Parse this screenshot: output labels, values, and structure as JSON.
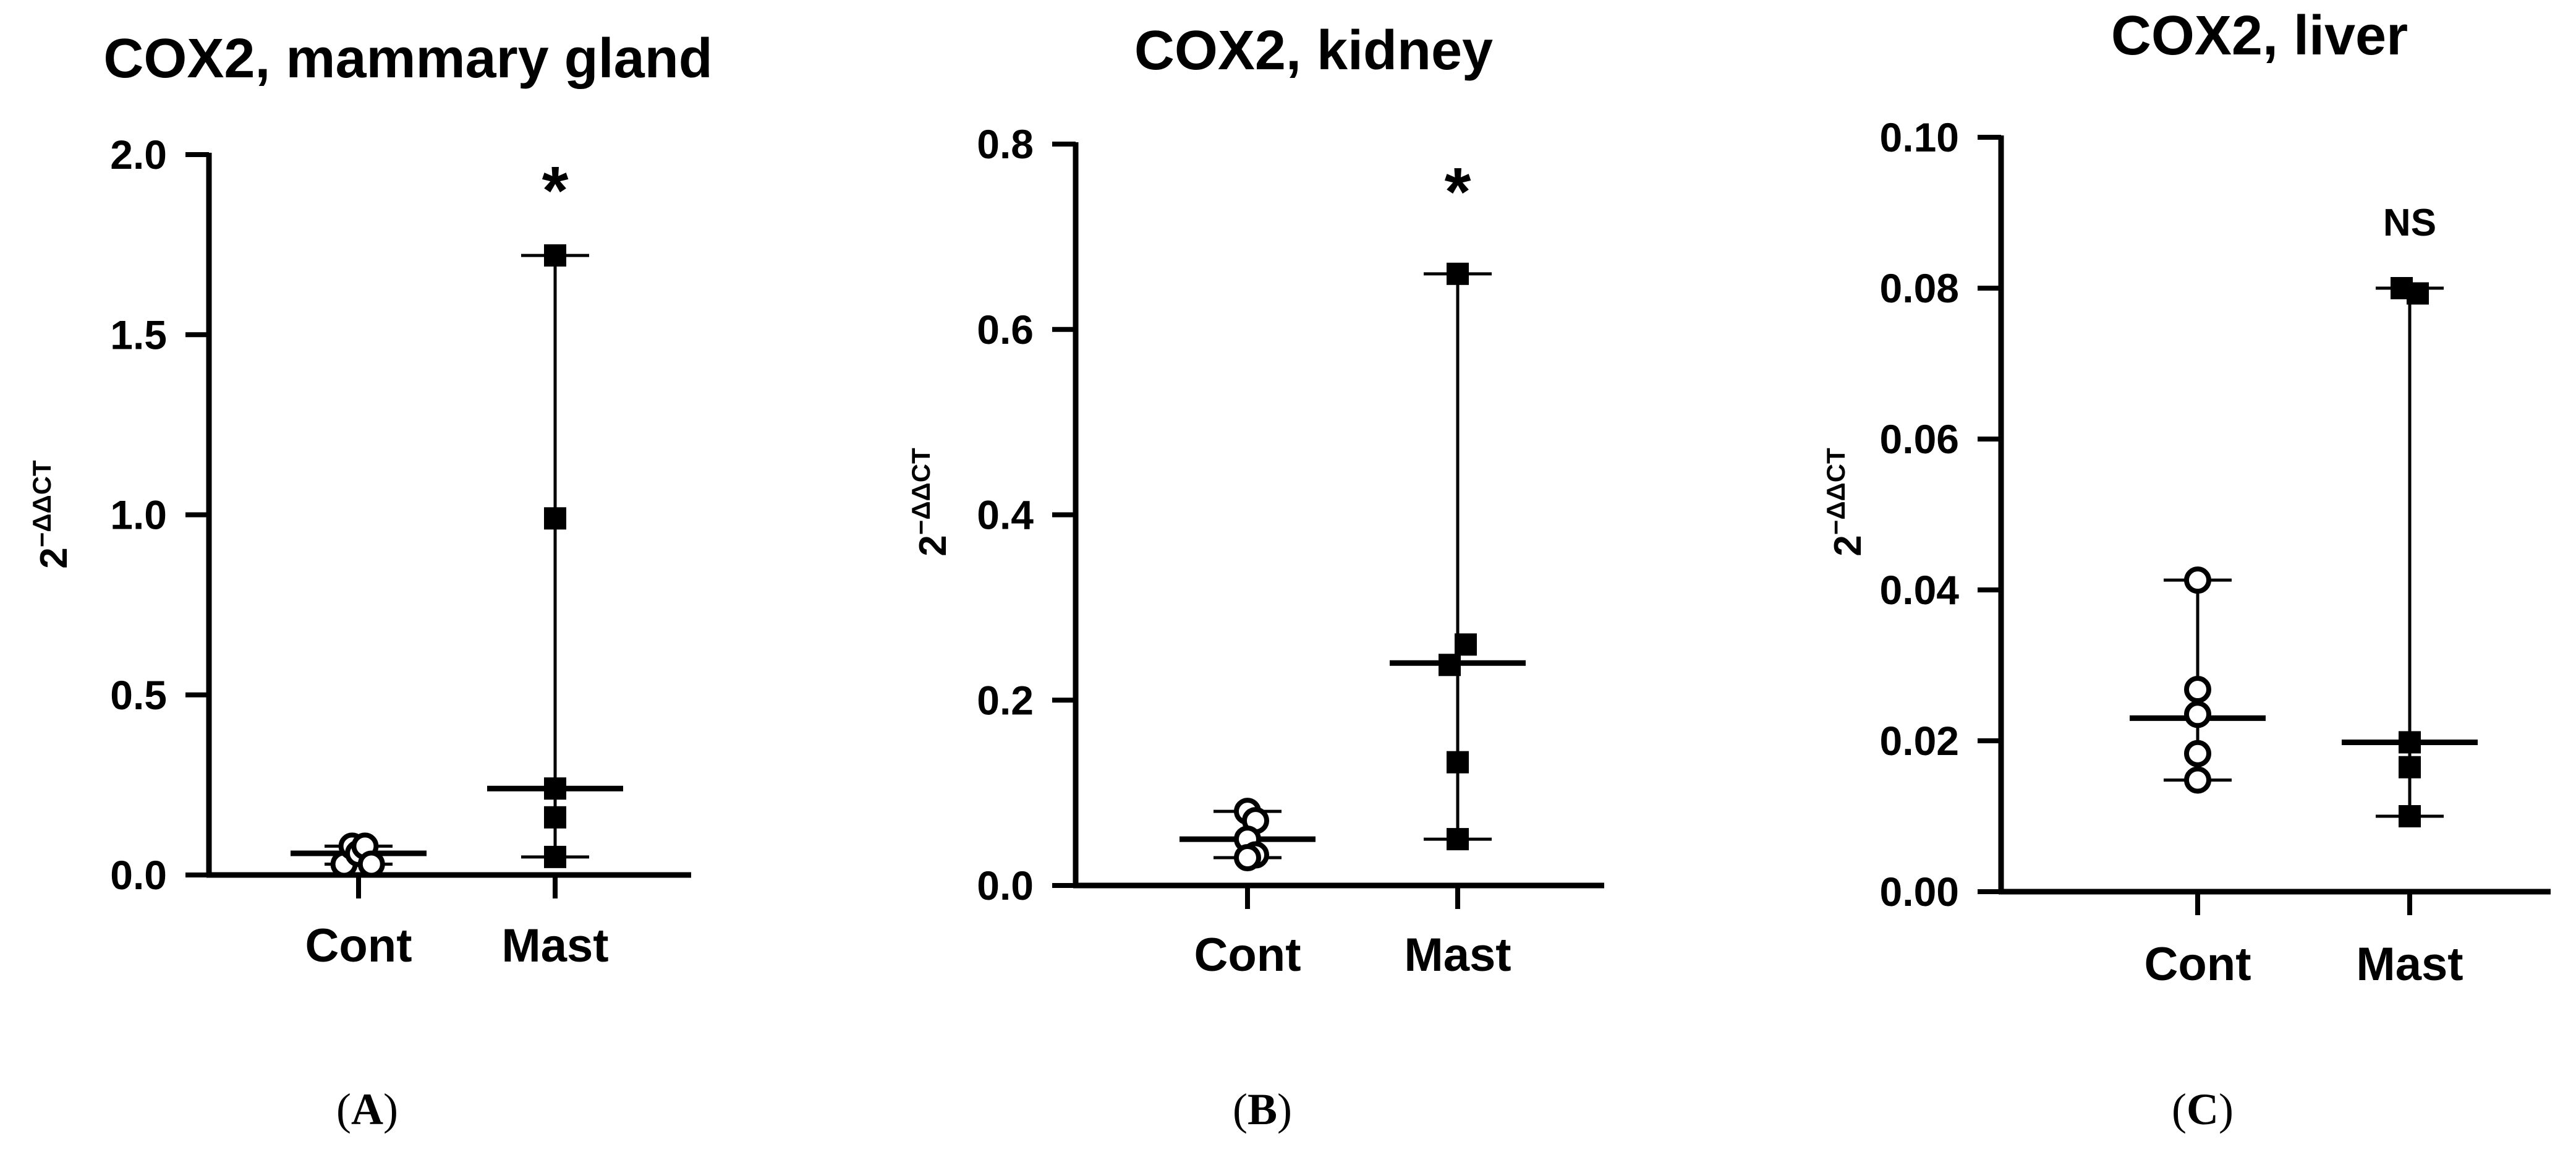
{
  "figure": {
    "panel_label_format": "({letter})"
  },
  "chart_data": [
    {
      "type": "scatter",
      "panel_letter": "A",
      "title": "COX2, mammary gland",
      "ylabel": "2",
      "ylabel_superscript": "−ΔΔCT",
      "xlabel": "",
      "categories": [
        "Cont",
        "Mast"
      ],
      "ylim": [
        0,
        2.0
      ],
      "yticks": [
        0.0,
        0.5,
        1.0,
        1.5,
        2.0
      ],
      "ytick_labels": [
        "0.0",
        "0.5",
        "1.0",
        "1.5",
        "2.0"
      ],
      "grid": false,
      "series": [
        {
          "name": "Cont",
          "marker": "open-circle",
          "points": [
            [
              -0.18,
              0.03
            ],
            [
              -0.08,
              0.08
            ],
            [
              0.0,
              0.06
            ],
            [
              0.08,
              0.08
            ],
            [
              0.16,
              0.03
            ]
          ],
          "median": 0.06,
          "range": [
            0.03,
            0.08
          ]
        },
        {
          "name": "Mast",
          "marker": "filled-square",
          "points": [
            [
              0,
              1.72
            ],
            [
              0,
              0.99
            ],
            [
              0,
              0.24
            ],
            [
              0,
              0.16
            ],
            [
              0,
              0.05
            ]
          ],
          "median": 0.24,
          "range": [
            0.05,
            1.72
          ]
        }
      ],
      "annotations": [
        {
          "category": "Mast",
          "text": "*",
          "value": 1.93
        }
      ]
    },
    {
      "type": "scatter",
      "panel_letter": "B",
      "title": "COX2, kidney",
      "ylabel": "2",
      "ylabel_superscript": "−ΔΔCT",
      "xlabel": "",
      "categories": [
        "Cont",
        "Mast"
      ],
      "ylim": [
        0,
        0.8
      ],
      "yticks": [
        0.0,
        0.2,
        0.4,
        0.6,
        0.8
      ],
      "ytick_labels": [
        "0.0",
        "0.2",
        "0.4",
        "0.6",
        "0.8"
      ],
      "grid": false,
      "series": [
        {
          "name": "Cont",
          "marker": "open-circle",
          "points": [
            [
              0,
              0.08
            ],
            [
              0.1,
              0.07
            ],
            [
              0,
              0.05
            ],
            [
              0.1,
              0.033
            ],
            [
              0,
              0.03
            ]
          ],
          "median": 0.05,
          "range": [
            0.03,
            0.08
          ]
        },
        {
          "name": "Mast",
          "marker": "filled-square",
          "points": [
            [
              0,
              0.66
            ],
            [
              0.1,
              0.26
            ],
            [
              -0.1,
              0.238
            ],
            [
              0,
              0.133
            ],
            [
              0,
              0.05
            ]
          ],
          "median": 0.24,
          "range": [
            0.05,
            0.66
          ]
        }
      ],
      "annotations": [
        {
          "category": "Mast",
          "text": "*",
          "value": 0.76
        }
      ]
    },
    {
      "type": "scatter",
      "panel_letter": "C",
      "title": "COX2, liver",
      "ylabel": "2",
      "ylabel_superscript": "−ΔΔCT",
      "xlabel": "",
      "categories": [
        "Cont",
        "Mast"
      ],
      "ylim": [
        0,
        0.1
      ],
      "yticks": [
        0.0,
        0.02,
        0.04,
        0.06,
        0.08,
        0.1
      ],
      "ytick_labels": [
        "0.00",
        "0.02",
        "0.04",
        "0.06",
        "0.08",
        "0.10"
      ],
      "grid": false,
      "series": [
        {
          "name": "Cont",
          "marker": "open-circle",
          "points": [
            [
              0,
              0.0413
            ],
            [
              0,
              0.0268
            ],
            [
              0,
              0.0235
            ],
            [
              0,
              0.0183
            ],
            [
              0,
              0.0148
            ]
          ],
          "median": 0.023,
          "range": [
            0.0148,
            0.0413
          ]
        },
        {
          "name": "Mast",
          "marker": "filled-square",
          "points": [
            [
              -0.1,
              0.08
            ],
            [
              0.1,
              0.0793
            ],
            [
              0,
              0.0198
            ],
            [
              0,
              0.0165
            ],
            [
              0,
              0.01
            ]
          ],
          "median": 0.0198,
          "range": [
            0.01,
            0.08
          ]
        }
      ],
      "annotations": [
        {
          "category": "Mast",
          "text": "NS",
          "value": 0.089
        }
      ]
    }
  ]
}
